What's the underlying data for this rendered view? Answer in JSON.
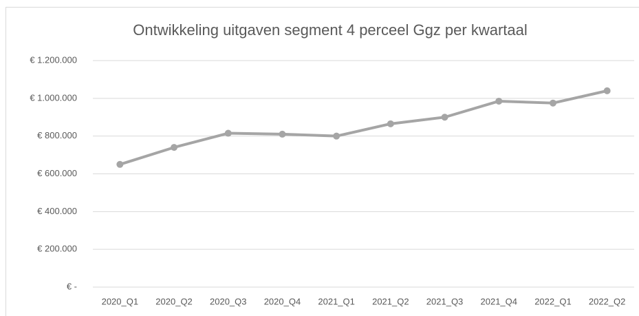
{
  "chart_data": {
    "type": "line",
    "title": "Ontwikkeling uitgaven segment 4 perceel Ggz per kwartaal",
    "categories": [
      "2020_Q1",
      "2020_Q2",
      "2020_Q3",
      "2020_Q4",
      "2021_Q1",
      "2021_Q2",
      "2021_Q3",
      "2021_Q4",
      "2022_Q1",
      "2022_Q2"
    ],
    "values": [
      650000,
      740000,
      815000,
      810000,
      800000,
      865000,
      900000,
      985000,
      975000,
      1040000
    ],
    "color": "#a5a5a5",
    "ylim": [
      0,
      1200000
    ],
    "yticks": [
      {
        "value": 0,
        "label": "€ -"
      },
      {
        "value": 200000,
        "label": "€ 200.000"
      },
      {
        "value": 400000,
        "label": "€ 400.000"
      },
      {
        "value": 600000,
        "label": "€ 600.000"
      },
      {
        "value": 800000,
        "label": "€ 800.000"
      },
      {
        "value": 1000000,
        "label": "€ 1.000.000"
      },
      {
        "value": 1200000,
        "label": "€ 1.200.000"
      }
    ],
    "grid": true
  }
}
